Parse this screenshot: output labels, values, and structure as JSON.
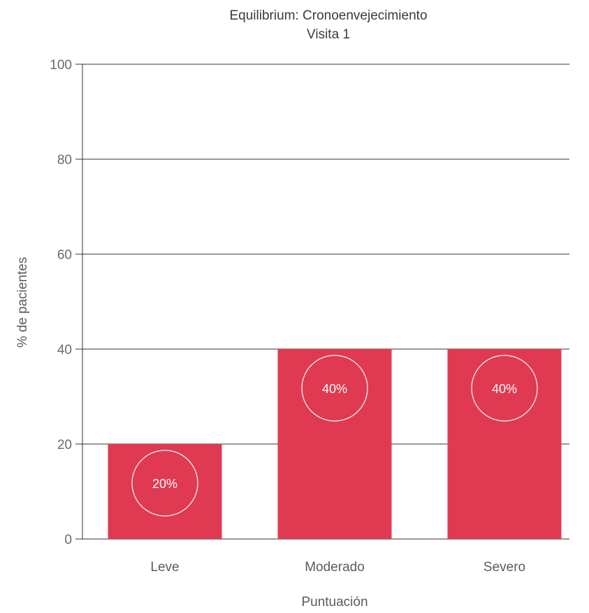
{
  "chart_data": {
    "type": "bar",
    "title": "Equilibrium: Cronoenvejecimiento",
    "subtitle": "Visita 1",
    "xlabel": "Puntuación",
    "ylabel": "% de pacientes",
    "categories": [
      "Leve",
      "Moderado",
      "Severo"
    ],
    "values": [
      20,
      40,
      40
    ],
    "data_labels": [
      "20%",
      "40%",
      "40%"
    ],
    "ylim": [
      0,
      100
    ],
    "yticks": [
      0,
      20,
      40,
      60,
      80,
      100
    ],
    "ytick_labels": [
      "0",
      "20",
      "40",
      "60",
      "80",
      "100"
    ],
    "grid": true,
    "legend": "none",
    "colors": {
      "bar": "#e03a52",
      "grid": "#333333",
      "label_circle": "#ffffff"
    }
  }
}
